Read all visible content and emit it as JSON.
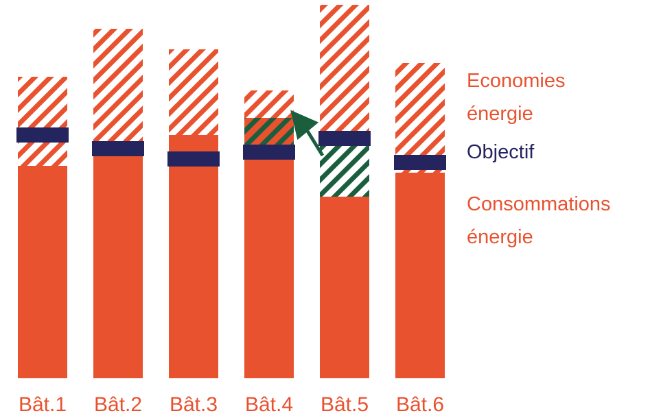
{
  "colors": {
    "consumption": "#e8522f",
    "savings_hatch": "#e8522f",
    "objective": "#24245e",
    "transfer": "#1b5e3e",
    "background": "#ffffff"
  },
  "legend": {
    "savings_line1": "Economies",
    "savings_line2": "énergie",
    "objective": "Objectif",
    "consumption_line1": "Consommations",
    "consumption_line2": "énergie"
  },
  "chart_data": {
    "type": "bar",
    "stacked": true,
    "categories": [
      "Bât.1",
      "Bât.2",
      "Bât.3",
      "Bât.4",
      "Bât.5",
      "Bât.6"
    ],
    "series": [
      {
        "name": "Consommations énergie",
        "values": [
          310,
          340,
          355,
          380,
          265,
          300
        ]
      },
      {
        "name": "Economies énergie",
        "values": [
          130,
          170,
          125,
          40,
          280,
          160
        ]
      }
    ],
    "objective": [
      355,
      335,
      320,
      330,
      350,
      315
    ],
    "transfer": {
      "from": "Bât.4",
      "to": "Bât.5",
      "amount": 90
    },
    "ylim": [
      0,
      550
    ],
    "grid": false,
    "legend_position": "right"
  }
}
